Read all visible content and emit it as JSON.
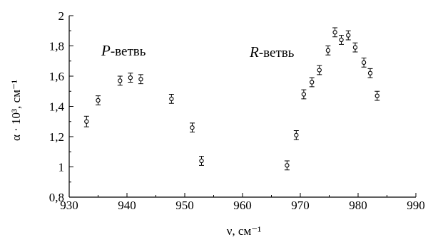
{
  "chart_data": {
    "type": "scatter",
    "title": "",
    "xlabel": "ν, см⁻¹",
    "ylabel": "α · 10³, см⁻¹",
    "xlim": [
      930,
      990
    ],
    "ylim": [
      0.8,
      2.0
    ],
    "grid": false,
    "x_ticks": [
      930,
      940,
      950,
      960,
      970,
      980,
      990
    ],
    "y_ticks": [
      0.8,
      1.0,
      1.2,
      1.4,
      1.6,
      1.8,
      2.0
    ],
    "x_tick_labels": [
      "930",
      "940",
      "950",
      "960",
      "970",
      "980",
      "990"
    ],
    "y_tick_labels": [
      "0,8",
      "1",
      "1,2",
      "1,4",
      "1,6",
      "1,8",
      "2"
    ],
    "annotations": [
      {
        "italic": "P",
        "text": "-ветвь"
      },
      {
        "italic": "R",
        "text": "-ветвь"
      }
    ],
    "series": [
      {
        "points": [
          {
            "x": 933.0,
            "y": 1.3,
            "err": 0.035
          },
          {
            "x": 935.0,
            "y": 1.44,
            "err": 0.03
          },
          {
            "x": 938.8,
            "y": 1.57,
            "err": 0.03
          },
          {
            "x": 940.6,
            "y": 1.59,
            "err": 0.03
          },
          {
            "x": 942.4,
            "y": 1.58,
            "err": 0.03
          },
          {
            "x": 947.7,
            "y": 1.45,
            "err": 0.03
          },
          {
            "x": 951.3,
            "y": 1.26,
            "err": 0.03
          },
          {
            "x": 952.9,
            "y": 1.04,
            "err": 0.03
          },
          {
            "x": 967.7,
            "y": 1.01,
            "err": 0.03
          },
          {
            "x": 969.3,
            "y": 1.21,
            "err": 0.03
          },
          {
            "x": 970.6,
            "y": 1.48,
            "err": 0.03
          },
          {
            "x": 972.0,
            "y": 1.56,
            "err": 0.03
          },
          {
            "x": 973.3,
            "y": 1.64,
            "err": 0.03
          },
          {
            "x": 974.8,
            "y": 1.77,
            "err": 0.03
          },
          {
            "x": 976.0,
            "y": 1.89,
            "err": 0.03
          },
          {
            "x": 977.1,
            "y": 1.84,
            "err": 0.03
          },
          {
            "x": 978.3,
            "y": 1.87,
            "err": 0.03
          },
          {
            "x": 979.5,
            "y": 1.79,
            "err": 0.03
          },
          {
            "x": 981.0,
            "y": 1.69,
            "err": 0.03
          },
          {
            "x": 982.1,
            "y": 1.62,
            "err": 0.03
          },
          {
            "x": 983.3,
            "y": 1.47,
            "err": 0.03
          }
        ]
      }
    ]
  }
}
